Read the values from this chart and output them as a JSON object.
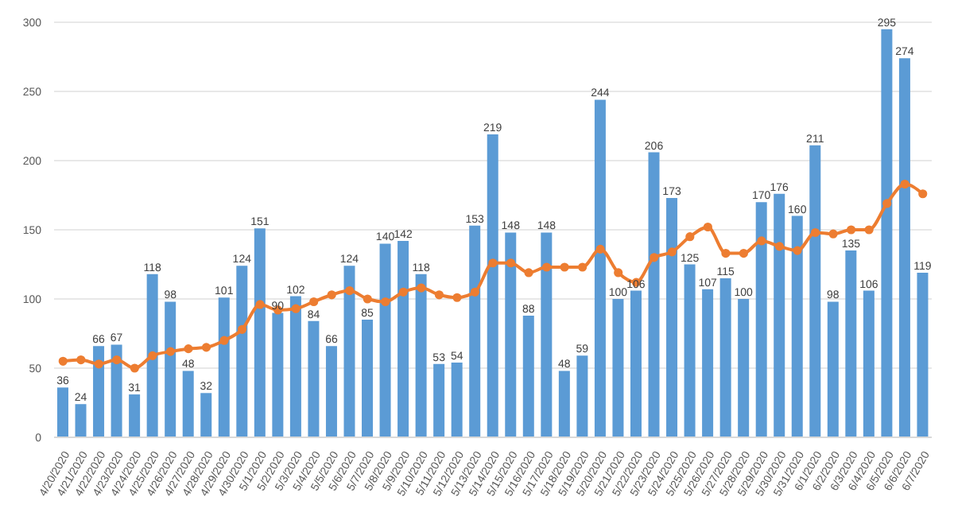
{
  "chart_data": {
    "type": "bar",
    "categories": [
      "4/20/2020",
      "4/21/2020",
      "4/22/2020",
      "4/23/2020",
      "4/24/2020",
      "4/25/2020",
      "4/26/2020",
      "4/27/2020",
      "4/28/2020",
      "4/29/2020",
      "4/30/2020",
      "5/1/2020",
      "5/2/2020",
      "5/3/2020",
      "5/4/2020",
      "5/5/2020",
      "5/6/2020",
      "5/7/2020",
      "5/8/2020",
      "5/9/2020",
      "5/10/2020",
      "5/11/2020",
      "5/12/2020",
      "5/13/2020",
      "5/14/2020",
      "5/15/2020",
      "5/16/2020",
      "5/17/2020",
      "5/18/2020",
      "5/19/2020",
      "5/20/2020",
      "5/21/2020",
      "5/22/2020",
      "5/23/2020",
      "5/24/2020",
      "5/25/2020",
      "5/26/2020",
      "5/27/2020",
      "5/28/2020",
      "5/29/2020",
      "5/30/2020",
      "5/31/2020",
      "6/1/2020",
      "6/2/2020",
      "6/3/2020",
      "6/4/2020",
      "6/5/2020",
      "6/6/2020",
      "6/7/2020"
    ],
    "series": [
      {
        "color": "#5b9bd5",
        "values": [
          36,
          24,
          66,
          67,
          31,
          118,
          98,
          48,
          32,
          101,
          124,
          151,
          90,
          102,
          84,
          66,
          124,
          85,
          140,
          142,
          118,
          53,
          54,
          153,
          219,
          148,
          88,
          148,
          48,
          59,
          244,
          100,
          106,
          206,
          173,
          125,
          107,
          115,
          100,
          170,
          176,
          160,
          211,
          98,
          135,
          106,
          295,
          274,
          119
        ],
        "value_labels": [
          "36",
          "24",
          "66",
          "67",
          "31",
          "118",
          "98",
          "48",
          "32",
          "101",
          "124",
          "151",
          "90",
          "102",
          "84",
          "66",
          "124",
          "85",
          "140",
          "142",
          "118",
          "53",
          "54",
          "153",
          "219",
          "148",
          "88",
          "148",
          "48",
          "59",
          "244",
          "100",
          "106",
          "206",
          "173",
          "125",
          "107",
          "115",
          "100",
          "170",
          "176",
          "160",
          "211",
          "98",
          "135",
          "106",
          "295",
          "274",
          "119"
        ]
      },
      {
        "type": "line",
        "color": "#ed7d31",
        "marker": "circle",
        "values": [
          55,
          56,
          53,
          56,
          50,
          59,
          62,
          64,
          65,
          70,
          78,
          96,
          92,
          93,
          98,
          103,
          106,
          100,
          98,
          105,
          108,
          103,
          101,
          105,
          126,
          126,
          119,
          123,
          123,
          123,
          136,
          119,
          112,
          130,
          134,
          145,
          152,
          133,
          133,
          142,
          138,
          135,
          148,
          147,
          150,
          150,
          169,
          183,
          176
        ]
      }
    ],
    "ylim": [
      0,
      300
    ],
    "yticks": [
      0,
      50,
      100,
      150,
      200,
      250,
      300
    ],
    "grid": "y",
    "legend": false
  }
}
